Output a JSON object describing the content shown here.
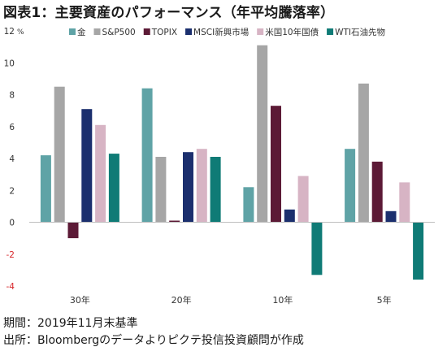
{
  "title": "図表1：主要資産のパフォーマンス（年平均騰落率）",
  "notes": {
    "period": "期間：2019年11月末基準",
    "source": "出所：Bloombergのデータよりピクテ投信投資顧問が作成"
  },
  "chart_data": {
    "type": "bar",
    "title": "図表1：主要資産のパフォーマンス（年平均騰落率）",
    "xlabel": "",
    "ylabel": "",
    "y_unit": "%",
    "ylim": [
      -4,
      12
    ],
    "y_ticks": [
      {
        "value": 12,
        "label": "12"
      },
      {
        "value": 10,
        "label": "10"
      },
      {
        "value": 8,
        "label": "8"
      },
      {
        "value": 6,
        "label": "6"
      },
      {
        "value": 4,
        "label": "4"
      },
      {
        "value": 2,
        "label": "2"
      },
      {
        "value": 0,
        "label": "0"
      },
      {
        "value": -2,
        "label": "-2"
      },
      {
        "value": -4,
        "label": "-4"
      }
    ],
    "grid": false,
    "legend_position": "top",
    "categories": [
      "30年",
      "20年",
      "10年",
      "5年"
    ],
    "series": [
      {
        "name": "金",
        "color": "#5fa3a6",
        "values": [
          4.2,
          8.4,
          2.2,
          4.6
        ]
      },
      {
        "name": "S&P500",
        "color": "#a6a6a6",
        "values": [
          8.5,
          4.1,
          11.1,
          8.7
        ]
      },
      {
        "name": "TOPIX",
        "color": "#5c1a36",
        "values": [
          -1.0,
          0.1,
          7.3,
          3.8
        ]
      },
      {
        "name": "MSCI新興市場",
        "color": "#1b2f6e",
        "values": [
          7.1,
          4.4,
          0.8,
          0.7
        ]
      },
      {
        "name": "米国10年国債",
        "color": "#d7b4c4",
        "values": [
          6.1,
          4.6,
          2.9,
          2.5
        ]
      },
      {
        "name": "WTI石油先物",
        "color": "#0f7b76",
        "values": [
          4.3,
          4.1,
          -3.3,
          -3.6
        ]
      }
    ]
  }
}
